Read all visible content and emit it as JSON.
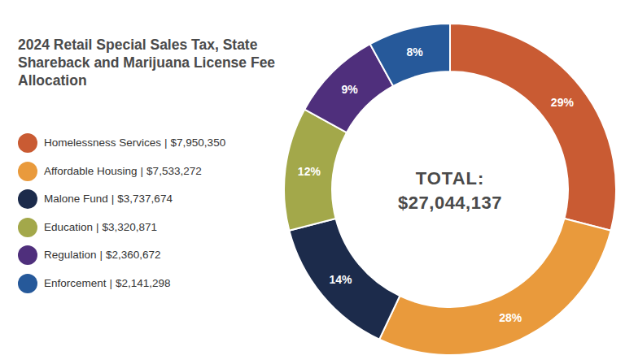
{
  "chart_data": {
    "type": "donut",
    "title": "2024 Retail Special Sales Tax, State Shareback and Marijuana License Fee Allocation",
    "categories": [
      "Homelessness Services",
      "Affordable Housing",
      "Malone Fund",
      "Education",
      "Regulation",
      "Enforcement"
    ],
    "values": [
      29,
      28,
      14,
      12,
      9,
      8
    ],
    "value_labels": [
      "29%",
      "28%",
      "14%",
      "12%",
      "9%",
      "8%"
    ],
    "data_labels": true,
    "colors": [
      "#c95b33",
      "#e99a3c",
      "#1c2b4b",
      "#a3a84a",
      "#4f2f7c",
      "#26599a"
    ],
    "amount_labels": [
      "$7,950,350",
      "$7,533,272",
      "$3,737,674",
      "$3,320,871",
      "$2,360,672",
      "$2,141,298"
    ],
    "legend_separator": "|",
    "legend": "left",
    "center_label": "TOTAL:",
    "total_label": "$27,044,137"
  }
}
